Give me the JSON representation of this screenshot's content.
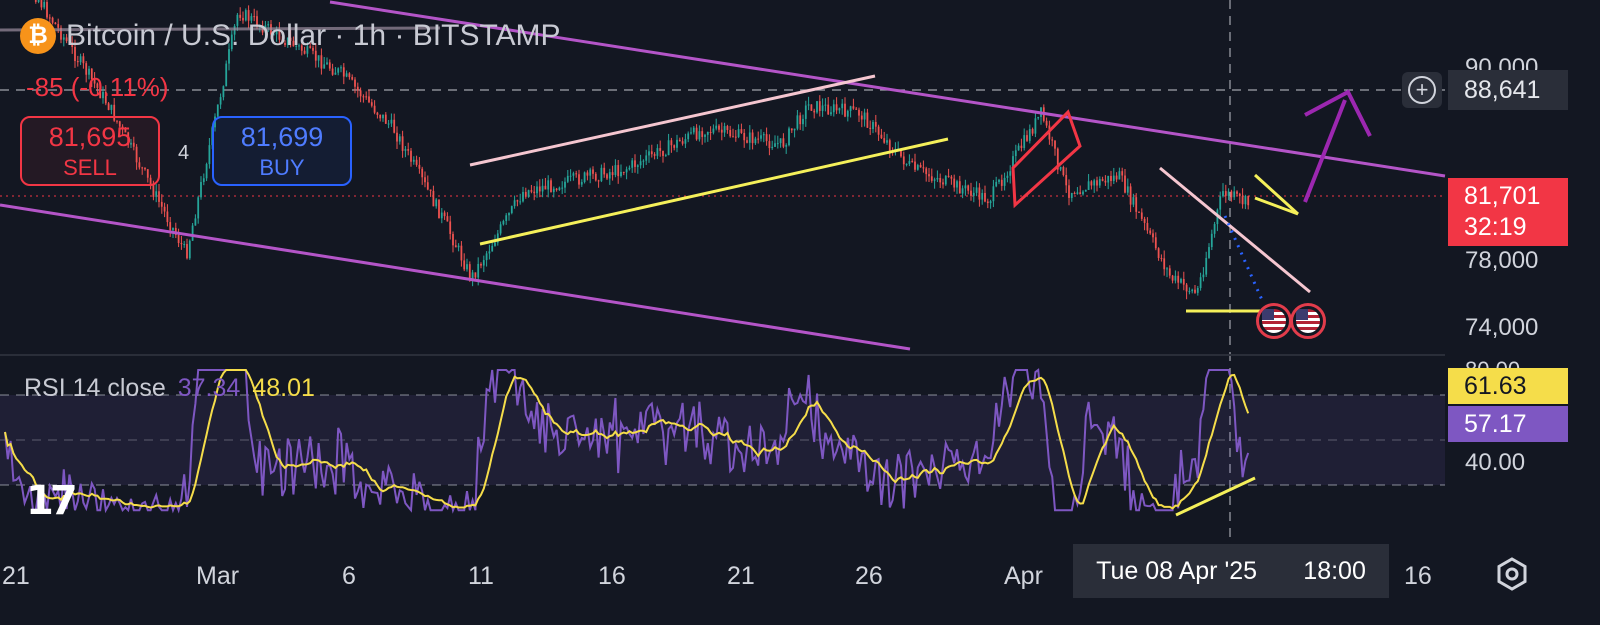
{
  "header": {
    "coin_symbol": "₿",
    "title": "Bitcoin / U.S. Dollar · 1h · BITSTAMP",
    "change": "-85 (-0.11%)"
  },
  "trade": {
    "sell_price": "81,695",
    "sell_label": "SELL",
    "spread": "4",
    "buy_price": "81,699",
    "buy_label": "BUY"
  },
  "rsi_legend": {
    "name": "RSI 14 close",
    "rsi_value": "37.34",
    "ma_value": "48.01"
  },
  "price_axis": {
    "ticks": [
      "90,000",
      "78,000",
      "74,000"
    ],
    "crosshair_price": "88,641",
    "last_price": "81,701",
    "countdown": "32:19"
  },
  "rsi_axis": {
    "ticks": [
      "80.00",
      "40.00"
    ],
    "rsi_tag": "61.63",
    "ma_tag": "57.17"
  },
  "time_axis": {
    "ticks": [
      "21",
      "Mar",
      "6",
      "11",
      "16",
      "21",
      "26",
      "Apr",
      "16"
    ],
    "crosshair_date": "Tue 08 Apr '25",
    "crosshair_time": "18:00"
  },
  "tv_logo": "17",
  "colors": {
    "background": "#131722",
    "up": "#26a69a",
    "down": "#ef5350",
    "sell": "#f23645",
    "buy": "#2962ff",
    "rsi": "#7e57c2",
    "rsi_ma": "#f5dd4a",
    "channel": "#b455c8",
    "target_arrow": "#9c27b0"
  },
  "icons": [
    "bitcoin-icon",
    "plus-circle-icon",
    "gear-icon",
    "us-flag-icon",
    "tradingview-logo"
  ],
  "chart_data": {
    "type": "candlestick",
    "symbol": "BTCUSD",
    "interval": "1h",
    "x_range": [
      "2025-02-21",
      "2025-04-16"
    ],
    "y_range": [
      72000,
      91000
    ],
    "approx_path": [
      {
        "date": "2025-02-21",
        "price": 98000
      },
      {
        "date": "2025-02-25",
        "price": 88000
      },
      {
        "date": "2025-02-28",
        "price": 78500
      },
      {
        "date": "2025-03-02",
        "price": 94000
      },
      {
        "date": "2025-03-06",
        "price": 90000
      },
      {
        "date": "2025-03-08",
        "price": 86500
      },
      {
        "date": "2025-03-10",
        "price": 80500
      },
      {
        "date": "2025-03-11",
        "price": 77000
      },
      {
        "date": "2025-03-13",
        "price": 82500
      },
      {
        "date": "2025-03-17",
        "price": 84000
      },
      {
        "date": "2025-03-20",
        "price": 86500
      },
      {
        "date": "2025-03-23",
        "price": 85500
      },
      {
        "date": "2025-03-24",
        "price": 88000
      },
      {
        "date": "2025-03-26",
        "price": 87500
      },
      {
        "date": "2025-03-28",
        "price": 84000
      },
      {
        "date": "2025-03-31",
        "price": 82000
      },
      {
        "date": "2025-04-02",
        "price": 87500
      },
      {
        "date": "2025-04-03",
        "price": 82500
      },
      {
        "date": "2025-04-05",
        "price": 83500
      },
      {
        "date": "2025-04-07",
        "price": 77000
      },
      {
        "date": "2025-04-08",
        "price": 76000
      },
      {
        "date": "2025-04-09",
        "price": 82500
      },
      {
        "date": "2025-04-10",
        "price": 81700
      }
    ],
    "rsi": {
      "period": 14,
      "source": "close",
      "last": 37.34,
      "ma_last": 48.01,
      "range": [
        20,
        80
      ],
      "levels": [
        30,
        70
      ]
    }
  }
}
